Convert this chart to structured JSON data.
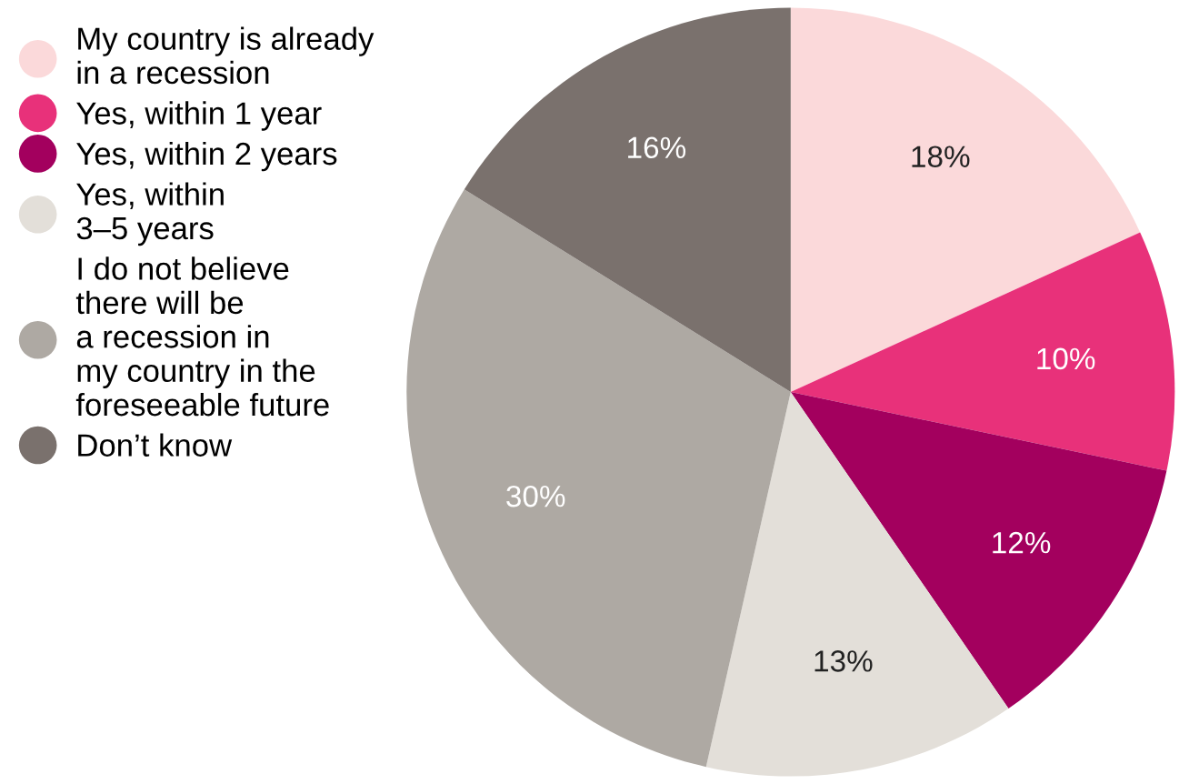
{
  "chart_data": {
    "type": "pie",
    "categories": [
      "My country is already\nin a recession",
      "Yes, within 1 year",
      "Yes, within 2 years",
      "Yes, within\n3–5 years",
      "I do not believe\nthere will be\na recession in\nmy country in the\nforeseeable future",
      "Don’t know"
    ],
    "values": [
      18,
      10,
      12,
      13,
      30,
      16
    ],
    "colors": [
      "#fbd9da",
      "#e8317a",
      "#a3005e",
      "#e3dfd9",
      "#aea9a3",
      "#7a716d"
    ],
    "value_labels": [
      "18%",
      "10%",
      "12%",
      "13%",
      "30%",
      "16%"
    ],
    "legend": "left"
  }
}
